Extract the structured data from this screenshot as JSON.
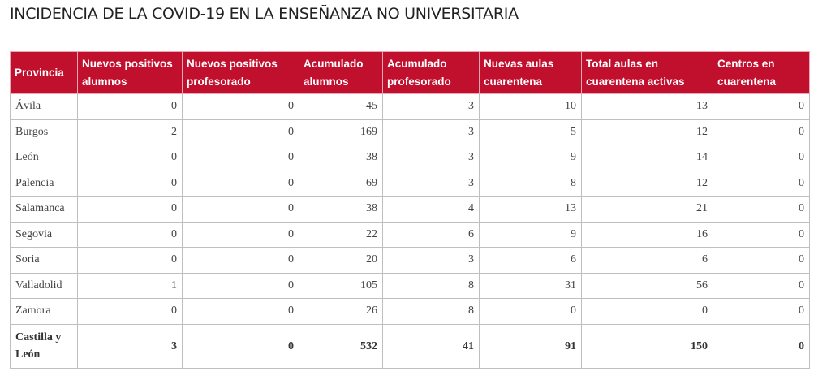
{
  "title": "INCIDENCIA DE LA COVID-19 EN LA ENSEÑANZA NO UNIVERSITARIA",
  "table": {
    "header": [
      "Provincia",
      "Nuevos positivos alumnos",
      "Nuevos positivos profesorado",
      "Acumulado alumnos",
      "Acumulado profesorado",
      "Nuevas aulas cuarentena",
      "Total aulas en cuarentena activas",
      "Centros en cuarentena"
    ],
    "rows": [
      [
        "Ávila",
        0,
        0,
        45,
        3,
        10,
        13,
        0
      ],
      [
        "Burgos",
        2,
        0,
        169,
        3,
        5,
        12,
        0
      ],
      [
        "León",
        0,
        0,
        38,
        3,
        9,
        14,
        0
      ],
      [
        "Palencia",
        0,
        0,
        69,
        3,
        8,
        12,
        0
      ],
      [
        "Salamanca",
        0,
        0,
        38,
        4,
        13,
        21,
        0
      ],
      [
        "Segovia",
        0,
        0,
        22,
        6,
        9,
        16,
        0
      ],
      [
        "Soria",
        0,
        0,
        20,
        3,
        6,
        6,
        0
      ],
      [
        "Valladolid",
        1,
        0,
        105,
        8,
        31,
        56,
        0
      ],
      [
        "Zamora",
        0,
        0,
        26,
        8,
        0,
        0,
        0
      ]
    ],
    "total": [
      "Castilla y León",
      3,
      0,
      532,
      41,
      91,
      150,
      0
    ]
  }
}
